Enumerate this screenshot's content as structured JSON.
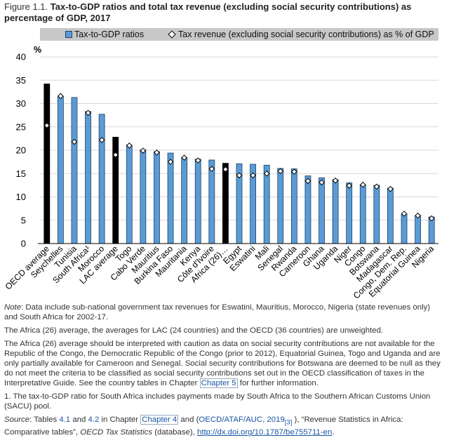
{
  "figure": {
    "label": "Figure 1.1.",
    "title": "Tax-to-GDP ratios and total tax revenue (excluding social security contributions) as percentage of GDP, 2017"
  },
  "legend": {
    "bar_label": "Tax-to-GDP ratios",
    "marker_label": "Tax revenue (excluding social security contributions) as % of GDP"
  },
  "colors": {
    "bar": "#5b9bd5",
    "bar_edge": "#1f3f66",
    "average_bar": "#000000",
    "marker_fill": "#ffffff",
    "legend_bg": "#c8c8c8",
    "grid": "#d9d9d9"
  },
  "chart_data": {
    "type": "bar",
    "ylabel": "%",
    "ylim": [
      0,
      40
    ],
    "yticks": [
      0,
      5,
      10,
      15,
      20,
      25,
      30,
      35,
      40
    ],
    "grid": true,
    "legend_position": "top",
    "categories": [
      "OECD average",
      "Seychelles",
      "Tunisia",
      "South Africa¹",
      "Morocco",
      "LAC average",
      "Togo",
      "Cabo Verde",
      "Mauritius",
      "Burkina Faso",
      "Mauritania",
      "Kenya",
      "Côte d'Ivoire",
      "Africa (26)…",
      "Egypt",
      "Eswatini",
      "Mali",
      "Senegal",
      "Rwanda",
      "Cameroon",
      "Ghana",
      "Uganda",
      "Niger",
      "Congo",
      "Botswana",
      "Madagascar",
      "Congo, Dem. Rep.",
      "Equatorial Guinea",
      "Nigeria"
    ],
    "highlight": [
      "OECD average",
      "LAC average",
      "Africa (26)…"
    ],
    "series": [
      {
        "name": "Tax-to-GDP ratios",
        "kind": "bar",
        "values": [
          34.2,
          31.6,
          31.3,
          28.3,
          27.7,
          22.8,
          21.1,
          20.1,
          19.7,
          19.4,
          18.4,
          18.1,
          17.9,
          17.2,
          17.1,
          17.0,
          16.8,
          16.1,
          16.0,
          14.5,
          14.1,
          13.7,
          13.0,
          12.6,
          12.5,
          11.9,
          6.4,
          6.0,
          5.7
        ]
      },
      {
        "name": "Tax revenue (excluding social security contributions) as % of GDP",
        "kind": "marker",
        "values": [
          25.3,
          31.6,
          21.8,
          28.0,
          22.2,
          19.0,
          21.0,
          19.9,
          19.5,
          17.5,
          18.4,
          17.8,
          16.0,
          15.9,
          14.6,
          14.6,
          15.0,
          15.5,
          15.4,
          13.4,
          13.1,
          13.5,
          12.4,
          12.6,
          12.2,
          11.7,
          6.4,
          6.0,
          5.4
        ]
      }
    ]
  },
  "notes": {
    "note_label": "Note",
    "note_text": ": Data include sub-national government tax revenues for Eswatini, Mauritius, Morocco, Nigeria (state revenues only) and South Africa for 2002-17.",
    "averages": "The Africa (26) average, the averages for LAC (24 countries) and the OECD (36 countries) are unweighted.",
    "caution_1": "The Africa (26) average should be interpreted with caution as data on social security contributions are not available for the Republic of the Congo, the Democratic Republic of the Congo (prior to 2012), Equatorial Guinea, Togo and Uganda and are only partially available for Cameroon and Senegal. Social security contributions for Botswana are deemed to be null as they do not meet the criteria to be classified as social security contributions set out in the OECD classification of taxes in the Interpretative Guide. See the country tables in Chapter",
    "caution_link": "Chapter 5",
    "caution_2": " for further information.",
    "footnote": "1. The tax-to-GDP ratio for South Africa includes payments made by South Africa to the Southern African Customs Union (SACU) pool.",
    "source_label": "Source",
    "source_1": ": Tables ",
    "table_41": "4.1",
    "and": " and ",
    "table_42": "4.2",
    "in_chapter": " in Chapter ",
    "chapter_4": "Chapter 4",
    "and_open": " and (",
    "oecd_ref": "OECD/ATAF/AUC, 2019",
    "ref_num": "[3]",
    "source_2": " ), “Revenue Statistics in Africa: Comparative tables”, ",
    "source_db": "OECD Tax Statistics",
    "source_3": " (database), ",
    "doi": "http://dx.doi.org/10.1787/be755711-en",
    "period": "."
  }
}
